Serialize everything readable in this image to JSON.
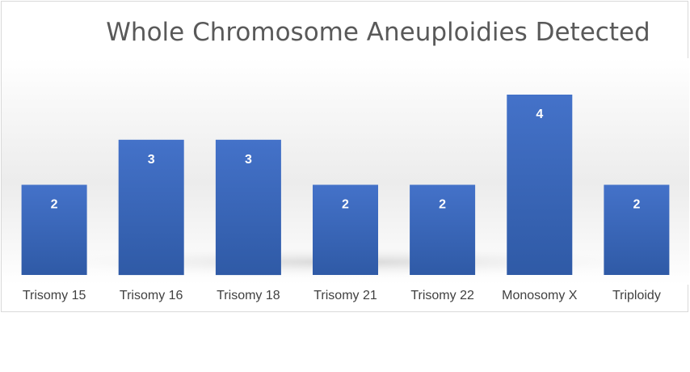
{
  "chart_data": {
    "type": "bar",
    "title": "Whole Chromosome Aneuploidies Detected",
    "categories": [
      "Trisomy 15",
      "Trisomy 16",
      "Trisomy 18",
      "Trisomy 21",
      "Trisomy 22",
      "Monosomy X",
      "Triploidy"
    ],
    "values": [
      2,
      3,
      3,
      2,
      2,
      4,
      2
    ],
    "data_labels": true,
    "ylim": [
      0,
      4
    ],
    "grid": false,
    "legend": "none",
    "bar_color": "#3f6fc5"
  }
}
